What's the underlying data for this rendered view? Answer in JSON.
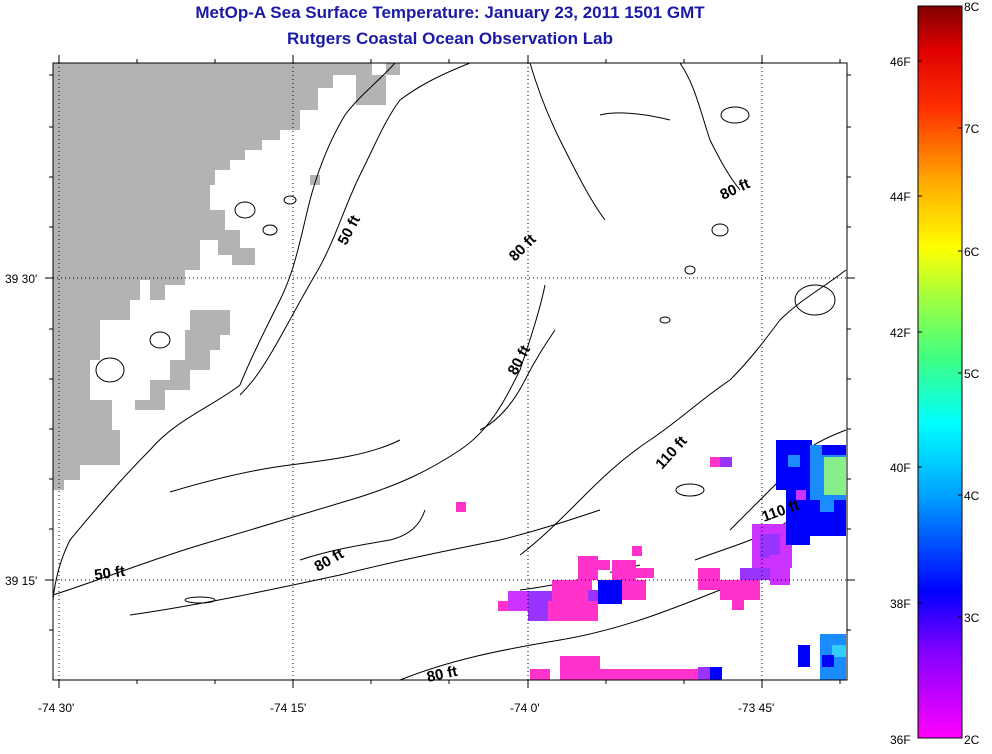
{
  "title": {
    "line1": "MetOp-A Sea Surface Temperature:  January 23, 2011 1501 GMT",
    "line2": "Rutgers Coastal Ocean Observation Lab"
  },
  "map": {
    "x_tick_labels": [
      "-74 30'",
      "-74 15'",
      "-74 0'",
      "-73 45'"
    ],
    "y_tick_labels": [
      "39 30'",
      "39 15'"
    ],
    "contour_labels": [
      "50 ft",
      "50 ft",
      "80 ft",
      "80 ft",
      "80 ft",
      "80 ft",
      "80 ft",
      "110 ft",
      "110 ft"
    ],
    "colors": {
      "land": "#b3b3b3",
      "sst_magenta": "#ff33cc",
      "sst_pink": "#ff55dd",
      "sst_purple": "#9933ff",
      "sst_blue": "#0000ff",
      "sst_lightblue": "#1a8cff",
      "sst_cyan": "#33ccff",
      "sst_green": "#88ee88"
    }
  },
  "colorbar": {
    "fahrenheit_labels": [
      "46F",
      "44F",
      "42F",
      "40F",
      "38F",
      "36F"
    ],
    "celsius_labels": [
      "8C",
      "7C",
      "6C",
      "5C",
      "4C",
      "3C",
      "2C"
    ]
  }
}
